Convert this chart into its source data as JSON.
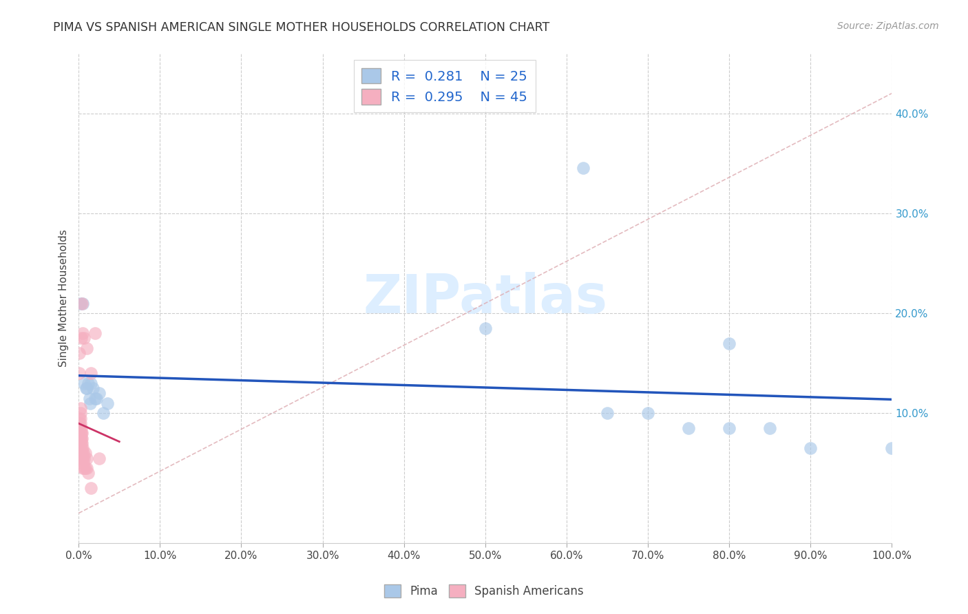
{
  "title": "PIMA VS SPANISH AMERICAN SINGLE MOTHER HOUSEHOLDS CORRELATION CHART",
  "source": "Source: ZipAtlas.com",
  "ylabel": "Single Mother Households",
  "xlim": [
    0,
    1.0
  ],
  "ylim": [
    -0.03,
    0.46
  ],
  "xticks": [
    0.0,
    0.1,
    0.2,
    0.3,
    0.4,
    0.5,
    0.6,
    0.7,
    0.8,
    0.9,
    1.0
  ],
  "yticks": [
    0.1,
    0.2,
    0.3,
    0.4
  ],
  "pima_color": "#aac8e8",
  "spanish_color": "#f5afc0",
  "pima_line_color": "#2255bb",
  "spanish_line_color": "#cc3366",
  "diag_line_color": "#ddaab0",
  "pima_points": [
    [
      0.002,
      0.21
    ],
    [
      0.005,
      0.21
    ],
    [
      0.007,
      0.13
    ],
    [
      0.009,
      0.125
    ],
    [
      0.01,
      0.125
    ],
    [
      0.012,
      0.13
    ],
    [
      0.013,
      0.115
    ],
    [
      0.014,
      0.11
    ],
    [
      0.015,
      0.13
    ],
    [
      0.018,
      0.125
    ],
    [
      0.02,
      0.115
    ],
    [
      0.022,
      0.115
    ],
    [
      0.025,
      0.12
    ],
    [
      0.03,
      0.1
    ],
    [
      0.035,
      0.11
    ],
    [
      0.5,
      0.185
    ],
    [
      0.62,
      0.345
    ],
    [
      0.65,
      0.1
    ],
    [
      0.7,
      0.1
    ],
    [
      0.75,
      0.085
    ],
    [
      0.8,
      0.17
    ],
    [
      0.8,
      0.085
    ],
    [
      0.85,
      0.085
    ],
    [
      1.0,
      0.065
    ],
    [
      0.9,
      0.065
    ]
  ],
  "spanish_points": [
    [
      0.001,
      0.075
    ],
    [
      0.001,
      0.085
    ],
    [
      0.001,
      0.09
    ],
    [
      0.001,
      0.095
    ],
    [
      0.002,
      0.065
    ],
    [
      0.002,
      0.075
    ],
    [
      0.002,
      0.08
    ],
    [
      0.002,
      0.09
    ],
    [
      0.002,
      0.095
    ],
    [
      0.002,
      0.1
    ],
    [
      0.002,
      0.105
    ],
    [
      0.003,
      0.055
    ],
    [
      0.003,
      0.065
    ],
    [
      0.003,
      0.07
    ],
    [
      0.003,
      0.075
    ],
    [
      0.003,
      0.08
    ],
    [
      0.003,
      0.085
    ],
    [
      0.004,
      0.055
    ],
    [
      0.004,
      0.06
    ],
    [
      0.004,
      0.07
    ],
    [
      0.004,
      0.075
    ],
    [
      0.004,
      0.08
    ],
    [
      0.005,
      0.045
    ],
    [
      0.005,
      0.055
    ],
    [
      0.005,
      0.065
    ],
    [
      0.006,
      0.05
    ],
    [
      0.006,
      0.06
    ],
    [
      0.007,
      0.045
    ],
    [
      0.007,
      0.055
    ],
    [
      0.008,
      0.045
    ],
    [
      0.008,
      0.06
    ],
    [
      0.01,
      0.045
    ],
    [
      0.01,
      0.055
    ],
    [
      0.012,
      0.04
    ],
    [
      0.015,
      0.025
    ],
    [
      0.001,
      0.14
    ],
    [
      0.001,
      0.16
    ],
    [
      0.003,
      0.175
    ],
    [
      0.004,
      0.21
    ],
    [
      0.005,
      0.18
    ],
    [
      0.007,
      0.175
    ],
    [
      0.01,
      0.165
    ],
    [
      0.015,
      0.14
    ],
    [
      0.02,
      0.18
    ],
    [
      0.025,
      0.055
    ]
  ],
  "pima_R": 0.281,
  "pima_N": 25,
  "spanish_R": 0.295,
  "spanish_N": 45
}
